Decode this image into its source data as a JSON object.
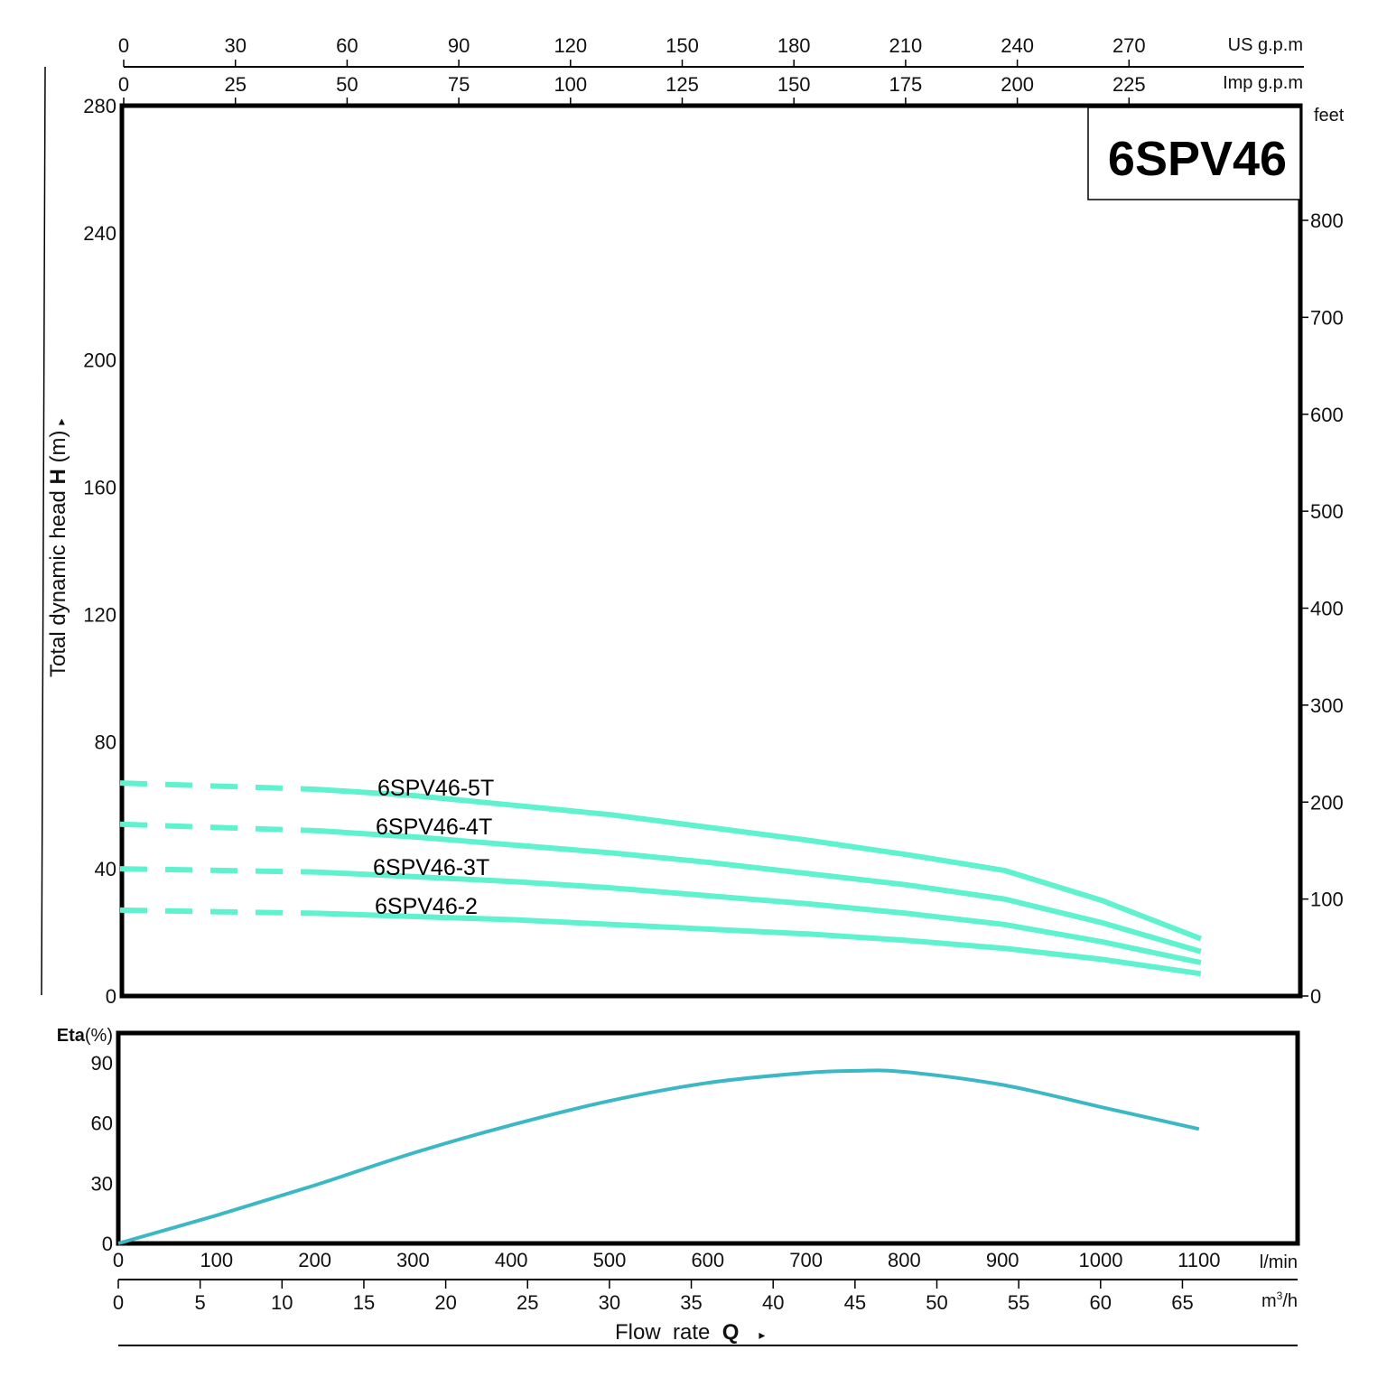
{
  "model": "6SPV46",
  "colors": {
    "head_curve": "#5ef2cf",
    "eta_curve": "#3cb8c4",
    "frame": "#000000"
  },
  "axes": {
    "top_us_gpm": {
      "unit": "US g.p.m",
      "ticks": [
        "0",
        "30",
        "60",
        "90",
        "120",
        "150",
        "180",
        "210",
        "240",
        "270"
      ]
    },
    "top_imp_gpm": {
      "unit": "Imp g.p.m",
      "ticks": [
        "0",
        "25",
        "50",
        "75",
        "100",
        "125",
        "150",
        "175",
        "200",
        "225"
      ]
    },
    "left_head_m": {
      "title_prefix": "Total dynamic head ",
      "title_bold": "H",
      "title_suffix": " (m)",
      "ticks": [
        "280",
        "240",
        "200",
        "160",
        "120",
        "80",
        "40",
        "0"
      ]
    },
    "right_feet": {
      "unit": "feet",
      "ticks": [
        "800",
        "700",
        "600",
        "500",
        "400",
        "300",
        "200",
        "100",
        "0"
      ]
    },
    "eta": {
      "title_bold": "Eta",
      "title_suffix": "(%)",
      "ticks": [
        "90",
        "60",
        "30",
        "0"
      ]
    },
    "bottom_lmin": {
      "unit": "l/min",
      "ticks": [
        "0",
        "100",
        "200",
        "300",
        "400",
        "500",
        "600",
        "700",
        "800",
        "900",
        "1000",
        "1100"
      ]
    },
    "bottom_m3h": {
      "unit_base": "m",
      "unit_sup": "3",
      "unit_suffix": "/h",
      "ticks": [
        "0",
        "5",
        "10",
        "15",
        "20",
        "25",
        "30",
        "35",
        "40",
        "45",
        "50",
        "55",
        "60",
        "65"
      ]
    },
    "flow_title": {
      "prefix": "Flow  rate  ",
      "bold": "Q",
      "arrow": "▸"
    }
  },
  "curve_labels": [
    "6SPV46-5T",
    "6SPV46-4T",
    "6SPV46-3T",
    "6SPV46-2"
  ],
  "chart_data": [
    {
      "type": "line",
      "title": "6SPV46",
      "xlabel": "Flow rate Q (l/min)",
      "ylabel": "Total dynamic head H (m)",
      "xlim": [
        0,
        1200
      ],
      "ylim": [
        0,
        280
      ],
      "secondary_y": {
        "label": "feet",
        "range": [
          0,
          920
        ]
      },
      "secondary_x": [
        {
          "label": "US g.p.m",
          "range": [
            0,
            317
          ]
        },
        {
          "label": "Imp g.p.m",
          "range": [
            0,
            264
          ]
        },
        {
          "label": "m3/h",
          "range": [
            0,
            72
          ]
        }
      ],
      "note": "Dashed segment from 0 to ~200 l/min (outside recommended range)",
      "x": [
        0,
        100,
        200,
        300,
        400,
        500,
        600,
        700,
        800,
        900,
        1000,
        1100
      ],
      "series": [
        {
          "name": "6SPV46-5T",
          "values": [
            67,
            66,
            65,
            63,
            60,
            57,
            53,
            49,
            44.5,
            39.5,
            30,
            18
          ]
        },
        {
          "name": "6SPV46-4T",
          "values": [
            54,
            53,
            52,
            50,
            47.5,
            45,
            42,
            38.5,
            35,
            30.5,
            23,
            14
          ]
        },
        {
          "name": "6SPV46-3T",
          "values": [
            40,
            39.5,
            39,
            37.5,
            36,
            34,
            31.5,
            29,
            26,
            22.5,
            17,
            10.5
          ]
        },
        {
          "name": "6SPV46-2",
          "values": [
            27,
            26.5,
            26,
            25,
            24,
            22.5,
            21,
            19.5,
            17.5,
            15,
            11.5,
            7
          ]
        }
      ],
      "legend_position": "inline labels near curves"
    },
    {
      "type": "line",
      "title": "",
      "xlabel": "Flow rate Q (l/min)",
      "ylabel": "Eta (%)",
      "xlim": [
        0,
        1200
      ],
      "ylim": [
        0,
        100
      ],
      "x": [
        0,
        100,
        200,
        300,
        400,
        500,
        600,
        700,
        750,
        800,
        900,
        1000,
        1100
      ],
      "series": [
        {
          "name": "Eta",
          "values": [
            0,
            14,
            29,
            45,
            59,
            71,
            80,
            85,
            86,
            85.5,
            79,
            68,
            57
          ]
        }
      ]
    }
  ]
}
